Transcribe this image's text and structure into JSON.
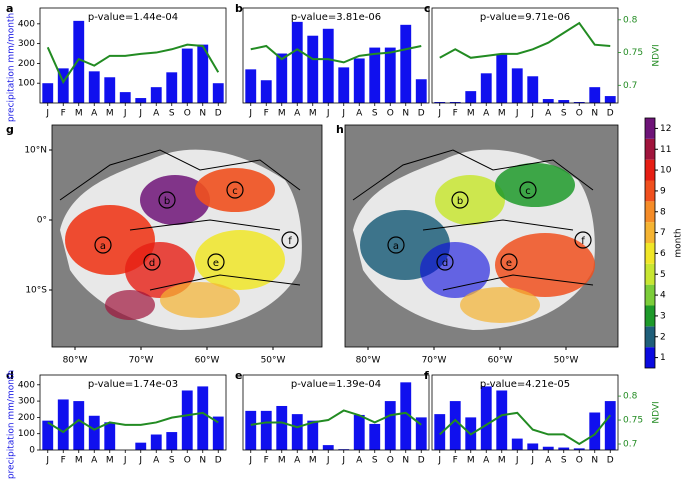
{
  "chart_data": [
    {
      "type": "bar",
      "label": "a",
      "title": "p-value=1.44e-04",
      "y_label": "precipitation mm/month",
      "categories": [
        "J",
        "F",
        "M",
        "A",
        "M",
        "J",
        "J",
        "A",
        "S",
        "O",
        "N",
        "D"
      ],
      "ylim": [
        0,
        480
      ],
      "yticks": [
        100,
        200,
        300,
        400
      ],
      "y2lim": [
        0.673,
        0.818
      ],
      "series": [
        {
          "color": "#1010ee",
          "values": [
            100,
            175,
            415,
            160,
            130,
            55,
            25,
            80,
            155,
            275,
            295,
            100
          ]
        },
        {
          "color": "#228b22",
          "axis": "y2",
          "values": [
            0.758,
            0.705,
            0.74,
            0.73,
            0.745,
            0.745,
            0.748,
            0.75,
            0.755,
            0.762,
            0.76,
            0.72
          ]
        }
      ]
    },
    {
      "type": "bar",
      "label": "b",
      "title": "p-value=3.81e-06",
      "categories": [
        "J",
        "F",
        "M",
        "A",
        "M",
        "J",
        "J",
        "A",
        "S",
        "O",
        "N",
        "D"
      ],
      "ylim": [
        0,
        480
      ],
      "y2lim": [
        0.673,
        0.818
      ],
      "series": [
        {
          "color": "#1010ee",
          "values": [
            170,
            115,
            250,
            410,
            340,
            375,
            180,
            225,
            280,
            280,
            395,
            120
          ]
        },
        {
          "color": "#228b22",
          "axis": "y2",
          "values": [
            0.755,
            0.76,
            0.74,
            0.755,
            0.74,
            0.74,
            0.735,
            0.745,
            0.748,
            0.75,
            0.755,
            0.76
          ]
        }
      ]
    },
    {
      "type": "bar",
      "label": "c",
      "title": "p-value=9.71e-06",
      "y2_label": "NDVI",
      "categories": [
        "J",
        "F",
        "M",
        "A",
        "M",
        "J",
        "J",
        "A",
        "S",
        "O",
        "N",
        "D"
      ],
      "ylim": [
        0,
        480
      ],
      "y2lim": [
        0.673,
        0.818
      ],
      "y2ticks": [
        0.7,
        0.75,
        0.8
      ],
      "series": [
        {
          "color": "#1010ee",
          "values": [
            5,
            5,
            60,
            150,
            245,
            175,
            135,
            20,
            15,
            5,
            80,
            35
          ]
        },
        {
          "color": "#228b22",
          "axis": "y2",
          "values": [
            0.742,
            0.755,
            0.742,
            0.745,
            0.748,
            0.748,
            0.755,
            0.765,
            0.78,
            0.795,
            0.762,
            0.76
          ]
        }
      ]
    },
    {
      "type": "bar",
      "label": "d",
      "title": "p-value=1.74e-03",
      "y_label": "precipitation mm/month",
      "categories": [
        "J",
        "F",
        "M",
        "A",
        "M",
        "J",
        "J",
        "A",
        "S",
        "O",
        "N",
        "D"
      ],
      "ylim": [
        0,
        460
      ],
      "yticks": [
        0,
        100,
        200,
        300,
        400
      ],
      "y2lim": [
        0.6875,
        0.844
      ],
      "series": [
        {
          "color": "#1010ee",
          "values": [
            180,
            310,
            300,
            210,
            170,
            0,
            45,
            95,
            110,
            365,
            390,
            205
          ]
        },
        {
          "color": "#228b22",
          "axis": "y2",
          "values": [
            0.745,
            0.725,
            0.75,
            0.73,
            0.745,
            0.74,
            0.74,
            0.745,
            0.755,
            0.76,
            0.765,
            0.745
          ]
        }
      ]
    },
    {
      "type": "bar",
      "label": "e",
      "title": "p-value=1.39e-04",
      "categories": [
        "J",
        "F",
        "M",
        "A",
        "M",
        "J",
        "J",
        "A",
        "S",
        "O",
        "N",
        "D"
      ],
      "ylim": [
        0,
        460
      ],
      "y2lim": [
        0.6875,
        0.844
      ],
      "series": [
        {
          "color": "#1010ee",
          "values": [
            240,
            240,
            270,
            220,
            180,
            30,
            5,
            215,
            160,
            300,
            415,
            200
          ]
        },
        {
          "color": "#228b22",
          "axis": "y2",
          "values": [
            0.74,
            0.745,
            0.745,
            0.735,
            0.745,
            0.75,
            0.77,
            0.76,
            0.745,
            0.76,
            0.765,
            0.74
          ]
        }
      ]
    },
    {
      "type": "bar",
      "label": "f",
      "title": "p-value=4.21e-05",
      "y2_label": "NDVI",
      "categories": [
        "J",
        "F",
        "M",
        "A",
        "M",
        "J",
        "J",
        "A",
        "S",
        "O",
        "N",
        "D"
      ],
      "ylim": [
        0,
        460
      ],
      "y2lim": [
        0.6875,
        0.844
      ],
      "y2ticks": [
        0.7,
        0.75,
        0.8
      ],
      "series": [
        {
          "color": "#1010ee",
          "values": [
            220,
            300,
            200,
            390,
            365,
            70,
            40,
            20,
            15,
            10,
            230,
            300
          ]
        },
        {
          "color": "#228b22",
          "axis": "y2",
          "values": [
            0.72,
            0.75,
            0.72,
            0.74,
            0.76,
            0.765,
            0.73,
            0.72,
            0.72,
            0.7,
            0.72,
            0.76
          ]
        }
      ]
    }
  ],
  "maps": {
    "panels": [
      "g",
      "h"
    ],
    "xticks": [
      "80°W",
      "70°W",
      "60°W",
      "50°W"
    ],
    "yticks": [
      "10°N",
      "0°",
      "10°S"
    ],
    "regions": [
      "a",
      "b",
      "c",
      "d",
      "e",
      "f"
    ]
  },
  "colorbar": {
    "label": "month",
    "lim": [
      0.5,
      12.5
    ],
    "ticks": [
      1,
      2,
      3,
      4,
      5,
      6,
      7,
      8,
      9,
      10,
      11,
      12
    ],
    "colors": [
      "#0a0ae0",
      "#1f5f7a",
      "#1e9a2a",
      "#7ccd3a",
      "#c8e632",
      "#f0e628",
      "#f5b432",
      "#f58c28",
      "#f0501e",
      "#e61e14",
      "#a0143c",
      "#6e1478"
    ]
  }
}
